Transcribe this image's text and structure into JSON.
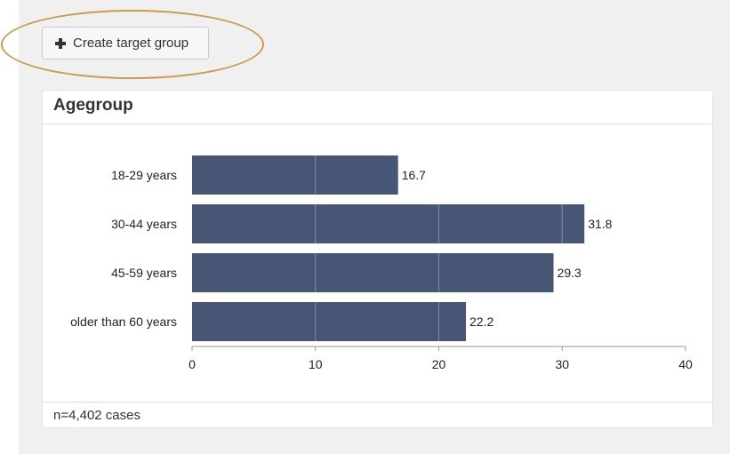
{
  "toolbar": {
    "create_label": "Create target group",
    "create_icon": "plus-icon"
  },
  "panel": {
    "title": "Agegroup",
    "footer": "n=4,402 cases"
  },
  "colors": {
    "bar": "#465674",
    "highlight": "#cc9a4a"
  },
  "chart_data": {
    "type": "bar",
    "orientation": "horizontal",
    "title": "Agegroup",
    "categories": [
      "18-29 years",
      "30-44 years",
      "45-59 years",
      "older than 60 years"
    ],
    "values": [
      16.7,
      31.8,
      29.3,
      22.2
    ],
    "xlim": [
      0,
      40
    ],
    "xticks": [
      0,
      10,
      20,
      30,
      40
    ],
    "grid": true,
    "legend": "none"
  }
}
